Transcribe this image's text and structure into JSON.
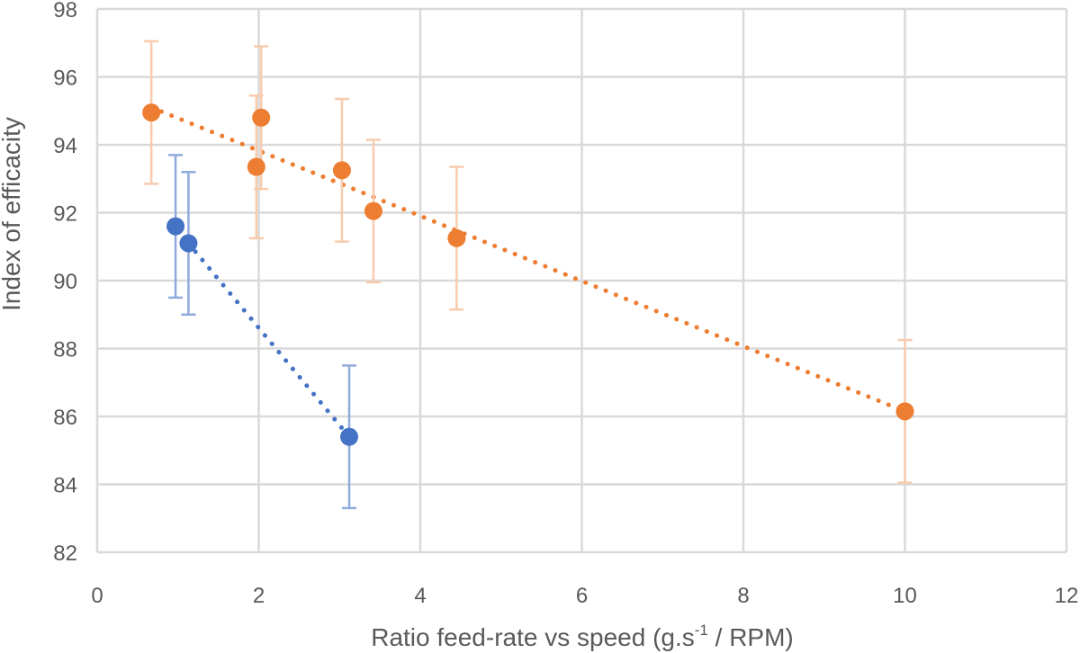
{
  "chart_data": {
    "type": "scatter",
    "title": "",
    "xlabel": "Ratio feed-rate vs speed (g.s",
    "xlabel_superscript": "-1",
    "xlabel_suffix": " / RPM)",
    "ylabel": "Index of efficacity",
    "xlim": [
      0,
      12
    ],
    "ylim": [
      82,
      98
    ],
    "xticks": [
      0,
      2,
      4,
      6,
      8,
      10,
      12
    ],
    "yticks": [
      82,
      84,
      86,
      88,
      90,
      92,
      94,
      96,
      98
    ],
    "grid": true,
    "legend": "none",
    "series": [
      {
        "name": "blue",
        "color": "#4472C4",
        "error_color": "#8FAADC",
        "x": [
          0.97,
          1.13,
          3.12
        ],
        "y": [
          91.6,
          91.1,
          85.4
        ],
        "error": [
          2.1,
          2.1,
          2.1
        ],
        "trendline": {
          "style": "dotted",
          "x": [
            1.13,
            3.12
          ],
          "y": [
            91.1,
            85.4
          ]
        }
      },
      {
        "name": "orange",
        "color": "#ED7D31",
        "error_color": "#F8CBAD",
        "x": [
          0.67,
          1.97,
          2.03,
          3.03,
          3.42,
          4.45,
          10.0
        ],
        "y": [
          94.95,
          93.35,
          94.8,
          93.25,
          92.05,
          91.25,
          86.15
        ],
        "error": [
          2.1,
          2.1,
          2.1,
          2.1,
          2.1,
          2.1,
          2.1
        ],
        "trendline": {
          "style": "dotted",
          "x": [
            0.67,
            10.0
          ],
          "y": [
            95.1,
            86.15
          ]
        }
      }
    ]
  }
}
